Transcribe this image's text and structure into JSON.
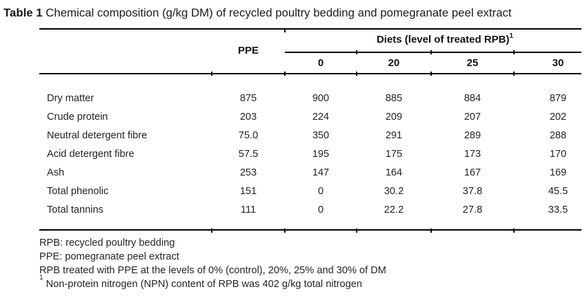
{
  "title": {
    "label": "Table 1",
    "text": " Chemical composition (g/kg DM) of recycled poultry bedding and pomegranate peel extract"
  },
  "table": {
    "col_ppe": "PPE",
    "spanner": {
      "text": "Diets (level of treated RPB)",
      "superscript": "1"
    },
    "diet_levels": [
      "0",
      "20",
      "25",
      "30"
    ],
    "rows": [
      {
        "label": "Dry matter",
        "ppe": "875",
        "values": [
          "900",
          "885",
          "884",
          "879"
        ]
      },
      {
        "label": "Crude protein",
        "ppe": "203",
        "values": [
          "224",
          "209",
          "207",
          "202"
        ]
      },
      {
        "label": "Neutral detergent fibre",
        "ppe": "75.0",
        "values": [
          "350",
          "291",
          "289",
          "288"
        ]
      },
      {
        "label": "Acid detergent fibre",
        "ppe": "57.5",
        "values": [
          "195",
          "175",
          "173",
          "170"
        ]
      },
      {
        "label": "Ash",
        "ppe": "253",
        "values": [
          "147",
          "164",
          "167",
          "169"
        ]
      },
      {
        "label": "Total phenolic",
        "ppe": "151",
        "values": [
          "0",
          "30.2",
          "37.8",
          "45.5"
        ]
      },
      {
        "label": "Total tannins",
        "ppe": "111",
        "values": [
          "0",
          "22.2",
          "27.8",
          "33.5"
        ]
      }
    ]
  },
  "footnotes": [
    {
      "superscript": "",
      "text": "RPB: recycled poultry bedding"
    },
    {
      "superscript": "",
      "text": "PPE: pomegranate peel extract"
    },
    {
      "superscript": "",
      "text": "RPB treated with PPE at the levels of 0% (control), 20%, 25% and 30% of DM"
    },
    {
      "superscript": "1",
      "text": "Non-protein nitrogen (NPN) content of RPB was 402 g/kg total nitrogen"
    }
  ],
  "colors": {
    "text": "#242424",
    "rule": "#000000",
    "background": "#ffffff"
  }
}
